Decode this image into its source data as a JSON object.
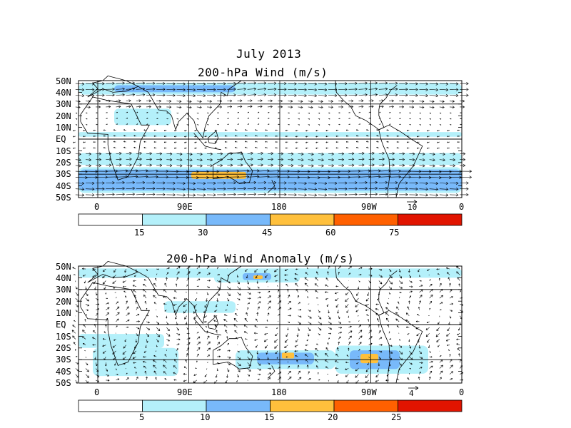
{
  "title": "July 2013",
  "panels": [
    {
      "title": "200-hPa Wind (m/s)",
      "lat_labels": [
        "50N",
        "40N",
        "30N",
        "20N",
        "10N",
        "EQ",
        "10S",
        "20S",
        "30S",
        "40S",
        "50S"
      ],
      "lon_labels": [
        "0",
        "90E",
        "180",
        "90W",
        "0"
      ],
      "reference_vector": "10",
      "colorbar": {
        "labels": [
          "15",
          "30",
          "45",
          "60",
          "75"
        ],
        "colors": [
          "#ffffff",
          "#b4f0fa",
          "#78b9fa",
          "#ffc03c",
          "#ff6000",
          "#e11400"
        ]
      }
    },
    {
      "title": "200-hPa Wind Anomaly (m/s)",
      "lat_labels": [
        "50N",
        "40N",
        "30N",
        "20N",
        "10N",
        "EQ",
        "10S",
        "20S",
        "30S",
        "40S",
        "50S"
      ],
      "lon_labels": [
        "0",
        "90E",
        "180",
        "90W",
        "0"
      ],
      "reference_vector": "4",
      "colorbar": {
        "labels": [
          "5",
          "10",
          "15",
          "20",
          "25"
        ],
        "colors": [
          "#ffffff",
          "#b4f0fa",
          "#78b9fa",
          "#ffc03c",
          "#ff6000",
          "#e11400"
        ]
      }
    }
  ]
}
